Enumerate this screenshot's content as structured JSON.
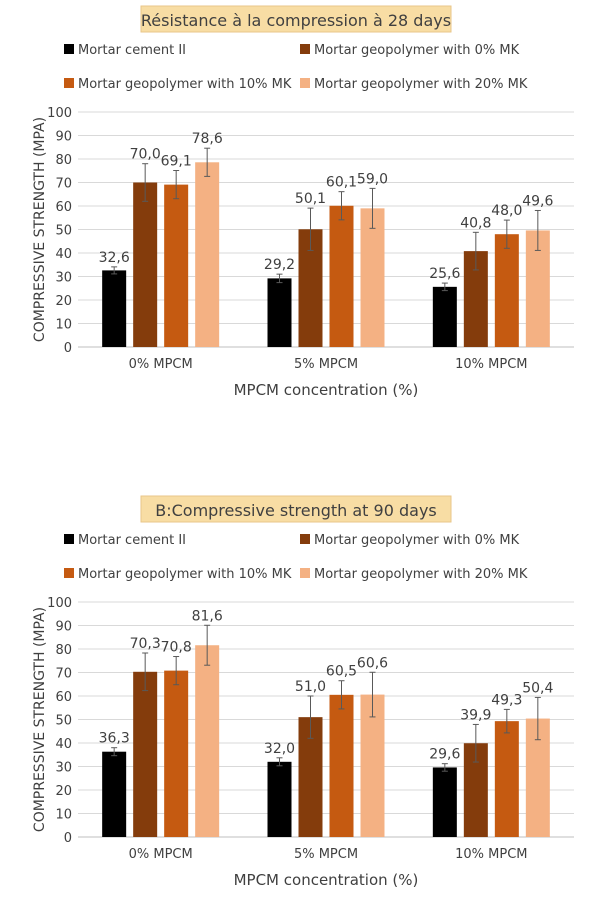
{
  "chart_data": [
    {
      "type": "bar",
      "title": "Résistance à la compression à 28 days",
      "xlabel": "MPCM concentration (%)",
      "ylabel": "COMPRESSIVE STRENGTH (MPA)",
      "ylim": [
        0,
        100
      ],
      "yticks": [
        0,
        10,
        20,
        30,
        40,
        50,
        60,
        70,
        80,
        90,
        100
      ],
      "grid": true,
      "legend_position": "top",
      "categories": [
        "0% MPCM",
        "5% MPCM",
        "10% MPCM"
      ],
      "series": [
        {
          "name": "Mortar cement II",
          "color": "#000000",
          "values": [
            32.6,
            29.2,
            25.6
          ],
          "labels": [
            "32,6",
            "29,2",
            "25,6"
          ],
          "errors": [
            1.5,
            1.8,
            1.6
          ]
        },
        {
          "name": "Mortar geopolymer with 0% MK",
          "color": "#843C0C",
          "values": [
            70.0,
            50.1,
            40.8
          ],
          "labels": [
            "70,0",
            "50,1",
            "40,8"
          ],
          "errors": [
            8,
            9,
            8
          ]
        },
        {
          "name": "Mortar geopolymer with 10% MK",
          "color": "#C55A11",
          "values": [
            69.1,
            60.1,
            48.0
          ],
          "labels": [
            "69,1",
            "60,1",
            "48,0"
          ],
          "errors": [
            6,
            6,
            6
          ]
        },
        {
          "name": "Mortar geopolymer with 20% MK",
          "color": "#F4B183",
          "values": [
            78.6,
            59.0,
            49.6
          ],
          "labels": [
            "78,6",
            "59,0",
            "49,6"
          ],
          "errors": [
            6,
            8.5,
            8.5
          ]
        }
      ]
    },
    {
      "type": "bar",
      "title": "B:Compressive strength at 90 days",
      "xlabel": "MPCM concentration (%)",
      "ylabel": "COMPRESSIVE STRENGTH (MPA)",
      "ylim": [
        0,
        100
      ],
      "yticks": [
        0,
        10,
        20,
        30,
        40,
        50,
        60,
        70,
        80,
        90,
        100
      ],
      "grid": true,
      "legend_position": "top",
      "categories": [
        "0% MPCM",
        "5% MPCM",
        "10% MPCM"
      ],
      "series": [
        {
          "name": "Mortar cement II",
          "color": "#000000",
          "values": [
            36.3,
            32.0,
            29.6
          ],
          "labels": [
            "36,3",
            "32,0",
            "29,6"
          ],
          "errors": [
            1.7,
            1.7,
            1.6
          ]
        },
        {
          "name": "Mortar geopolymer with 0% MK",
          "color": "#843C0C",
          "values": [
            70.3,
            51.0,
            39.9
          ],
          "labels": [
            "70,3",
            "51,0",
            "39,9"
          ],
          "errors": [
            8,
            9,
            8
          ]
        },
        {
          "name": "Mortar geopolymer with 10% MK",
          "color": "#C55A11",
          "values": [
            70.8,
            60.5,
            49.3
          ],
          "labels": [
            "70,8",
            "60,5",
            "49,3"
          ],
          "errors": [
            6,
            6,
            5
          ]
        },
        {
          "name": "Mortar geopolymer with 20% MK",
          "color": "#F4B183",
          "values": [
            81.6,
            60.6,
            50.4
          ],
          "labels": [
            "81,6",
            "60,6",
            "50,4"
          ],
          "errors": [
            8.5,
            9.5,
            9
          ]
        }
      ]
    }
  ]
}
